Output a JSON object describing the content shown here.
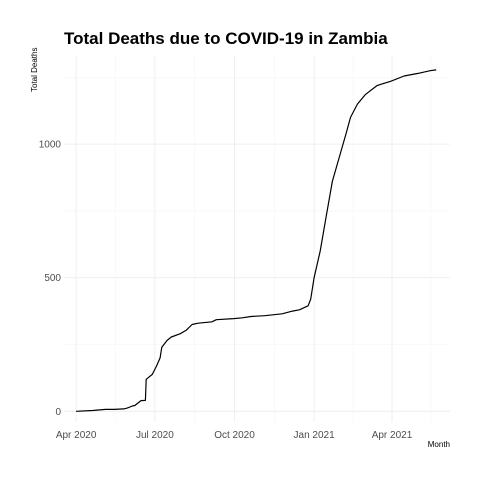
{
  "chart_data": {
    "type": "line",
    "title": "Total Deaths due to COVID-19 in Zambia",
    "xlabel": "Month",
    "ylabel": "Total Deaths",
    "x_ticks": [
      "Apr 2020",
      "Jul 2020",
      "Oct 2020",
      "Jan 2021",
      "Apr 2021"
    ],
    "y_ticks": [
      0,
      500,
      1000
    ],
    "xlim": [
      "2020-03-18",
      "2021-06-07"
    ],
    "ylim": [
      -40,
      1330
    ],
    "grid": true,
    "legend": "none",
    "series": [
      {
        "color": "#000000",
        "points": [
          [
            "2020-04-01",
            0
          ],
          [
            "2020-04-20",
            3
          ],
          [
            "2020-05-05",
            7
          ],
          [
            "2020-05-15",
            7
          ],
          [
            "2020-05-26",
            9
          ],
          [
            "2020-05-30",
            12
          ],
          [
            "2020-06-05",
            20
          ],
          [
            "2020-06-08",
            22
          ],
          [
            "2020-06-15",
            40
          ],
          [
            "2020-06-20",
            41
          ],
          [
            "2020-06-21",
            120
          ],
          [
            "2020-06-28",
            138
          ],
          [
            "2020-07-03",
            170
          ],
          [
            "2020-07-07",
            200
          ],
          [
            "2020-07-09",
            240
          ],
          [
            "2020-07-15",
            265
          ],
          [
            "2020-07-20",
            278
          ],
          [
            "2020-07-30",
            290
          ],
          [
            "2020-08-06",
            303
          ],
          [
            "2020-08-13",
            325
          ],
          [
            "2020-08-20",
            330
          ],
          [
            "2020-09-05",
            335
          ],
          [
            "2020-09-10",
            343
          ],
          [
            "2020-09-30",
            347
          ],
          [
            "2020-10-10",
            350
          ],
          [
            "2020-10-20",
            355
          ],
          [
            "2020-11-05",
            358
          ],
          [
            "2020-11-25",
            365
          ],
          [
            "2020-12-07",
            375
          ],
          [
            "2020-12-15",
            380
          ],
          [
            "2020-12-25",
            395
          ],
          [
            "2020-12-28",
            420
          ],
          [
            "2021-01-01",
            500
          ],
          [
            "2021-01-08",
            600
          ],
          [
            "2021-01-15",
            730
          ],
          [
            "2021-01-22",
            860
          ],
          [
            "2021-01-30",
            950
          ],
          [
            "2021-02-07",
            1040
          ],
          [
            "2021-02-12",
            1100
          ],
          [
            "2021-02-20",
            1150
          ],
          [
            "2021-03-01",
            1185
          ],
          [
            "2021-03-15",
            1220
          ],
          [
            "2021-03-30",
            1235
          ],
          [
            "2021-04-15",
            1255
          ],
          [
            "2021-05-01",
            1265
          ],
          [
            "2021-05-15",
            1275
          ],
          [
            "2021-05-22",
            1278
          ]
        ]
      }
    ]
  }
}
